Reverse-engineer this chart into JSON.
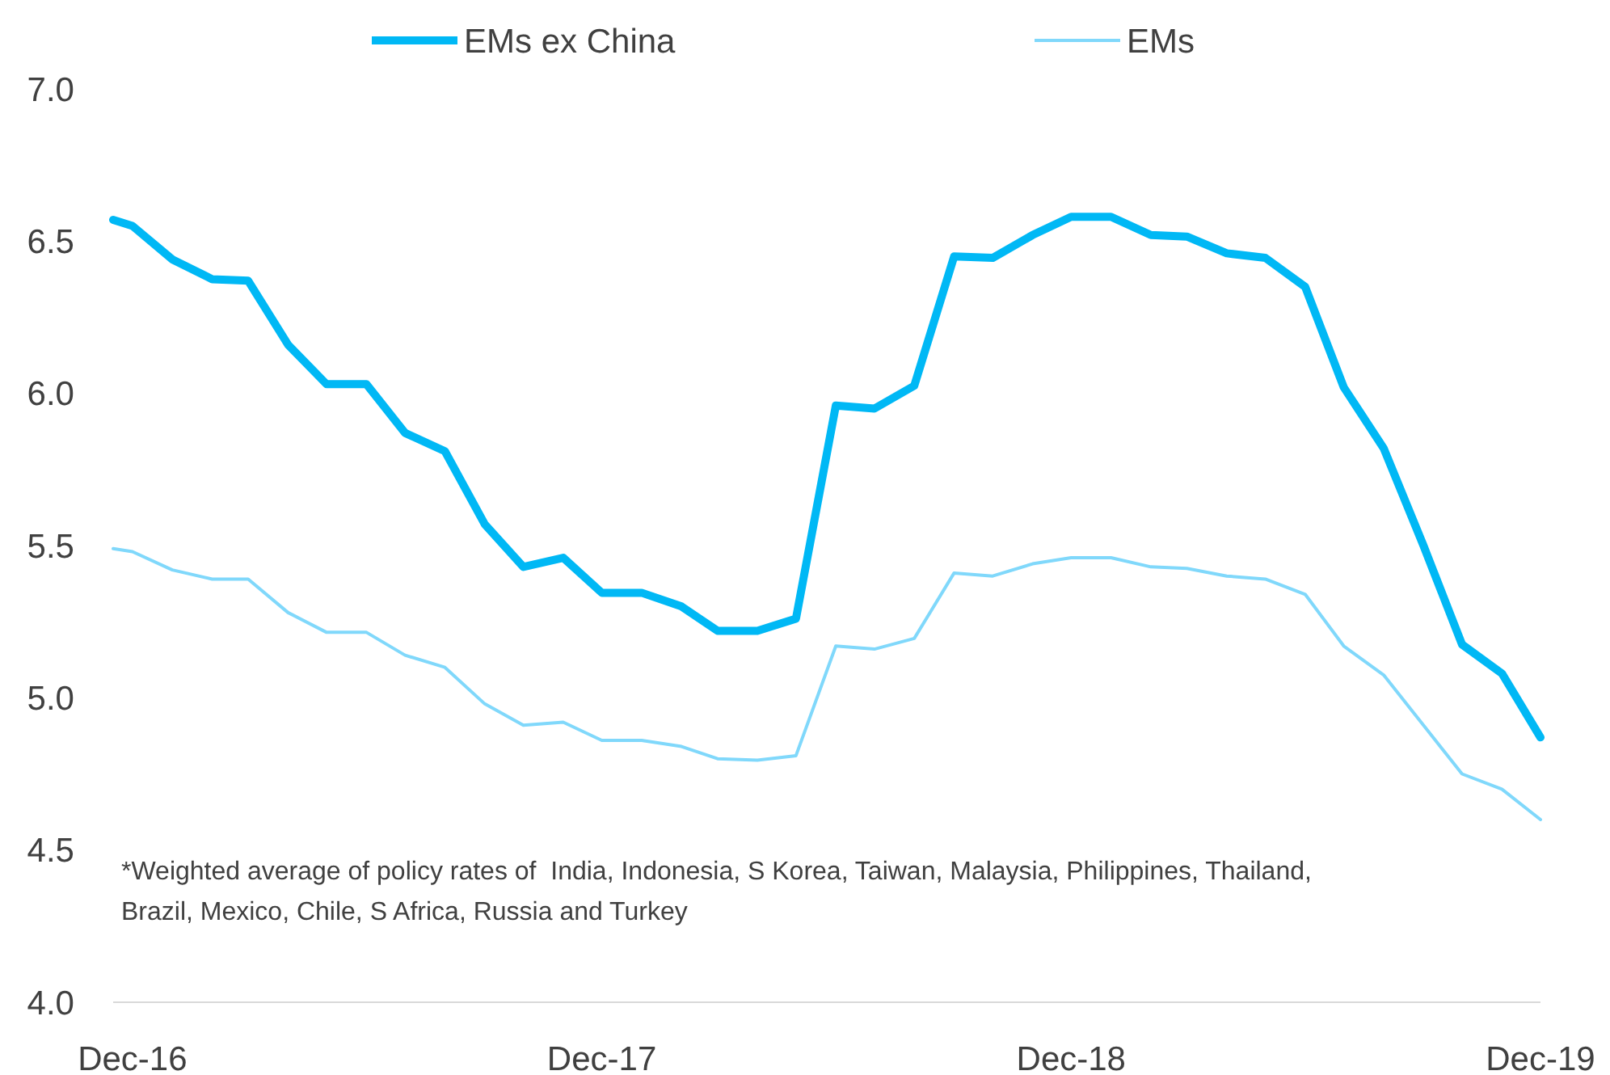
{
  "chart_data": {
    "type": "line",
    "x": [
      "2016-11-16",
      "2016-12",
      "2017-01",
      "2017-02",
      "2017-03",
      "2017-04",
      "2017-05",
      "2017-06",
      "2017-07",
      "2017-08",
      "2017-09",
      "2017-10",
      "2017-11",
      "2017-12",
      "2018-01",
      "2018-02",
      "2018-03",
      "2018-04",
      "2018-05",
      "2018-06",
      "2018-07",
      "2018-08",
      "2018-09",
      "2018-10",
      "2018-11",
      "2018-12",
      "2019-01",
      "2019-02",
      "2019-03",
      "2019-04",
      "2019-05",
      "2019-06",
      "2019-07",
      "2019-08",
      "2019-09",
      "2019-10",
      "2019-11",
      "2019-12"
    ],
    "series": [
      {
        "name": "EMs ex China",
        "color": "#00b8f5",
        "values": [
          6.57,
          6.55,
          6.44,
          6.375,
          6.37,
          6.16,
          6.03,
          6.03,
          5.87,
          5.81,
          5.57,
          5.43,
          5.46,
          5.345,
          5.345,
          5.3,
          5.22,
          5.22,
          5.26,
          5.96,
          5.95,
          6.025,
          6.45,
          6.445,
          6.52,
          6.58,
          6.58,
          6.52,
          6.515,
          6.46,
          6.445,
          6.35,
          6.02,
          5.82,
          5.5,
          5.175,
          5.08,
          4.87
        ]
      },
      {
        "name": "EMs",
        "color": "#80d8fb",
        "values": [
          5.49,
          5.48,
          5.42,
          5.39,
          5.39,
          5.28,
          5.215,
          5.215,
          5.14,
          5.1,
          4.98,
          4.91,
          4.92,
          4.86,
          4.86,
          4.84,
          4.8,
          4.795,
          4.81,
          5.17,
          5.16,
          5.195,
          5.41,
          5.4,
          5.44,
          5.46,
          5.46,
          5.43,
          5.425,
          5.4,
          5.39,
          5.34,
          5.17,
          5.075,
          4.91,
          4.75,
          4.7,
          4.6
        ]
      }
    ],
    "xlim": [
      "2016-11-16",
      "2019-12"
    ],
    "xticks": [
      {
        "value": "2016-12",
        "label": "Dec-16"
      },
      {
        "value": "2017-12",
        "label": "Dec-17"
      },
      {
        "value": "2018-12",
        "label": "Dec-18"
      },
      {
        "value": "2019-12",
        "label": "Dec-19"
      }
    ],
    "ylim": [
      4,
      7
    ],
    "yticks": [
      {
        "value": 4,
        "label": "4.0"
      },
      {
        "value": 4.5,
        "label": "4.5"
      },
      {
        "value": 5,
        "label": "5.0"
      },
      {
        "value": 5.5,
        "label": "5.5"
      },
      {
        "value": 6,
        "label": "6.0"
      },
      {
        "value": 6.5,
        "label": "6.5"
      },
      {
        "value": 7,
        "label": "7.0"
      }
    ],
    "annotations": [
      "*Weighted average of policy rates of  India, Indonesia, S Korea, Taiwan, Malaysia, Philippines, Thailand, Brazil, Mexico, Chile, S Africa, Russia and Turkey"
    ],
    "legend": "top",
    "grid": false,
    "marker": "none",
    "line_style": "solid"
  }
}
